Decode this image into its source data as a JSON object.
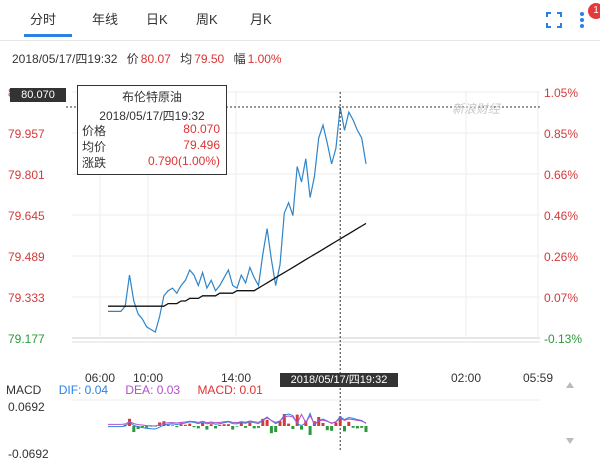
{
  "tabs": [
    {
      "label": "分时",
      "active": true
    },
    {
      "label": "年线"
    },
    {
      "label": "日K"
    },
    {
      "label": "周K"
    },
    {
      "label": "月K"
    }
  ],
  "header_icons": [
    "fullscreen-icon",
    "more-icon"
  ],
  "notification_count": "1",
  "infobar": {
    "datetime": "2018/05/17/四19:32",
    "price_label": "价",
    "price": "80.07",
    "avg_label": "均",
    "avg": "79.50",
    "change_label": "幅",
    "change": "1.00%"
  },
  "watermark": "新浪财经",
  "tooltip": {
    "title": "布伦特原油",
    "datetime": "2018/05/17/四19:32",
    "rows": [
      {
        "label": "价格",
        "value": "80.070"
      },
      {
        "label": "均价",
        "value": "79.496"
      },
      {
        "label": "涨跌",
        "value": "0.790(1.00%)"
      }
    ]
  },
  "cursor_price": "80.070",
  "cursor_time": "2018/05/17/四19:32",
  "colors": {
    "price_line": "#2f84c8",
    "avg_line": "#111111",
    "up": "#d33a3a",
    "down": "#2a9a3a",
    "axis_text": "#d33a3a"
  },
  "chart_data": {
    "type": "line",
    "y_ticks_left": [
      "80.070",
      "79.957",
      "79.801",
      "79.645",
      "79.489",
      "79.333",
      "79.177"
    ],
    "y_ticks_right": [
      "1.05%",
      "0.85%",
      "0.66%",
      "0.46%",
      "0.26%",
      "0.07%",
      "-0.13%"
    ],
    "x_ticks": [
      "06:00",
      "10:00",
      "14:00",
      "02:00",
      "05:59"
    ],
    "ylim": [
      79.177,
      80.128
    ],
    "series": [
      {
        "values": [
          79.28,
          79.28,
          79.28,
          79.28,
          79.3,
          79.42,
          79.32,
          79.27,
          79.25,
          79.22,
          79.21,
          79.2,
          79.26,
          79.34,
          79.36,
          79.37,
          79.35,
          79.38,
          79.4,
          79.44,
          79.42,
          79.38,
          79.43,
          79.37,
          79.4,
          79.36,
          79.38,
          79.41,
          79.44,
          79.38,
          79.37,
          79.42,
          79.39,
          79.45,
          79.41,
          79.38,
          79.5,
          79.6,
          79.48,
          79.38,
          79.46,
          79.66,
          79.7,
          79.65,
          79.84,
          79.78,
          79.87,
          79.72,
          79.8,
          79.95,
          80.0,
          79.93,
          79.85,
          79.91,
          80.07,
          79.98,
          80.05,
          80.02,
          79.98,
          79.95,
          79.85
        ]
      },
      {
        "values": [
          79.3,
          79.3,
          79.3,
          79.3,
          79.3,
          79.3,
          79.3,
          79.3,
          79.3,
          79.3,
          79.3,
          79.3,
          79.3,
          79.3,
          79.31,
          79.31,
          79.31,
          79.32,
          79.32,
          79.33,
          79.33,
          79.33,
          79.34,
          79.34,
          79.34,
          79.34,
          79.35,
          79.35,
          79.35,
          79.35,
          79.36,
          79.36,
          79.36,
          79.36,
          79.36,
          79.37,
          79.38,
          79.39,
          79.4,
          79.41,
          79.42,
          79.43,
          79.44,
          79.45,
          79.46,
          79.47,
          79.48,
          79.49,
          79.5,
          79.51,
          79.52,
          79.53,
          79.54,
          79.55,
          79.56,
          79.57,
          79.58,
          79.59,
          79.6,
          79.61,
          79.62
        ]
      }
    ]
  },
  "macd": {
    "label": "MACD",
    "dif_label": "DIF: 0.04",
    "dea_label": "DEA: 0.03",
    "macd_label": "MACD: 0.01",
    "top": "0.0692",
    "bottom": "-0.0692"
  }
}
